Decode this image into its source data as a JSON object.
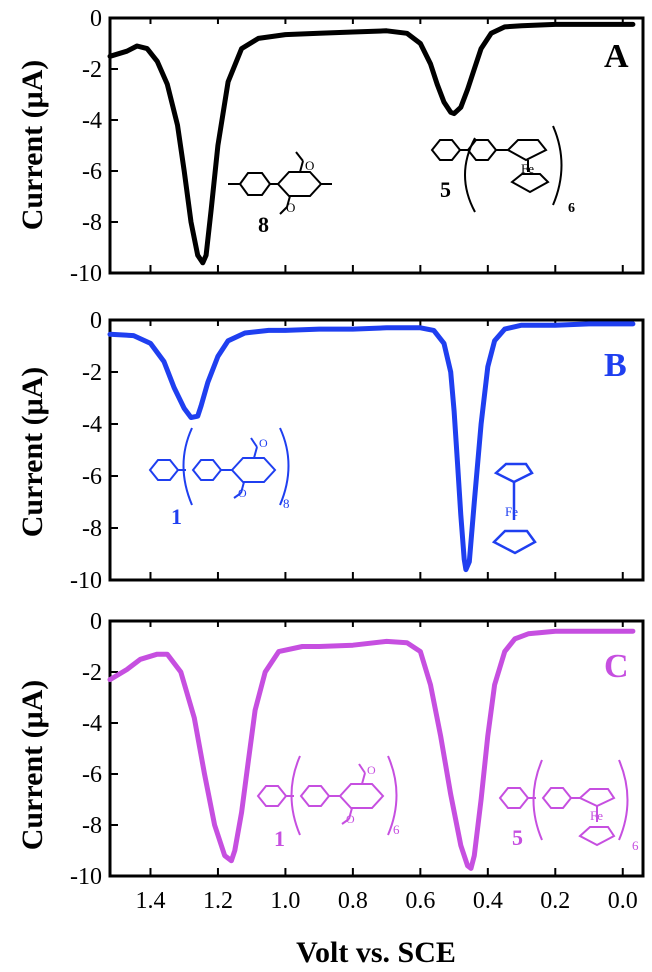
{
  "figure": {
    "xlabel": "Volt vs. SCE",
    "ylabel": "Current (μA)"
  },
  "chart_data": [
    {
      "type": "line",
      "panel_label": "A",
      "color": "#000000",
      "xlabel": "",
      "ylabel": "Current (μA)",
      "xlim": [
        1.52,
        -0.06
      ],
      "ylim": [
        -10,
        0
      ],
      "yticks": [
        0,
        -2,
        -4,
        -6,
        -8,
        -10
      ],
      "yticklabels": [
        "0",
        "-2",
        "-4",
        "-6",
        "-8",
        "-10"
      ],
      "grid": false,
      "series": [
        {
          "x": [
            1.52,
            1.47,
            1.44,
            1.41,
            1.38,
            1.35,
            1.32,
            1.3,
            1.28,
            1.26,
            1.245,
            1.235,
            1.22,
            1.2,
            1.17,
            1.13,
            1.08,
            1.0,
            0.9,
            0.8,
            0.7,
            0.64,
            0.6,
            0.57,
            0.55,
            0.53,
            0.51,
            0.5,
            0.48,
            0.46,
            0.44,
            0.42,
            0.39,
            0.35,
            0.3,
            0.2,
            0.1,
            0.0,
            -0.03
          ],
          "y": [
            -1.5,
            -1.3,
            -1.1,
            -1.2,
            -1.7,
            -2.6,
            -4.2,
            -6.0,
            -8.0,
            -9.3,
            -9.6,
            -9.3,
            -7.5,
            -5.0,
            -2.5,
            -1.2,
            -0.8,
            -0.65,
            -0.6,
            -0.55,
            -0.5,
            -0.6,
            -1.0,
            -1.8,
            -2.6,
            -3.3,
            -3.7,
            -3.75,
            -3.5,
            -2.8,
            -2.0,
            -1.2,
            -0.6,
            -0.35,
            -0.3,
            -0.25,
            -0.25,
            -0.25,
            -0.25
          ]
        }
      ],
      "annotations": [
        {
          "text": "8",
          "x": 1.2,
          "y": -8.3
        },
        {
          "text": "5",
          "x": 0.5,
          "y": -6.6
        },
        {
          "text": "Fe",
          "x": 0.23,
          "y": -5.8
        },
        {
          "text": "6",
          "x": 0.07,
          "y": -7.2
        }
      ],
      "structures": [
        "molecule 8",
        "ferrocene"
      ]
    },
    {
      "type": "line",
      "panel_label": "B",
      "color": "#1f3ff0",
      "xlabel": "",
      "ylabel": "Current (μA)",
      "xlim": [
        1.52,
        -0.06
      ],
      "ylim": [
        -10,
        0
      ],
      "yticks": [
        0,
        -2,
        -4,
        -6,
        -8,
        -10
      ],
      "yticklabels": [
        "0",
        "-2",
        "-4",
        "-6",
        "-8",
        "-10"
      ],
      "grid": false,
      "series": [
        {
          "x": [
            1.52,
            1.45,
            1.4,
            1.36,
            1.33,
            1.3,
            1.28,
            1.26,
            1.25,
            1.23,
            1.2,
            1.17,
            1.12,
            1.05,
            1.0,
            0.9,
            0.8,
            0.7,
            0.6,
            0.56,
            0.53,
            0.51,
            0.5,
            0.49,
            0.48,
            0.47,
            0.465,
            0.455,
            0.44,
            0.42,
            0.4,
            0.38,
            0.35,
            0.3,
            0.2,
            0.1,
            0.0,
            -0.03
          ],
          "y": [
            -0.55,
            -0.6,
            -0.9,
            -1.6,
            -2.6,
            -3.4,
            -3.75,
            -3.7,
            -3.3,
            -2.4,
            -1.4,
            -0.8,
            -0.5,
            -0.4,
            -0.4,
            -0.35,
            -0.35,
            -0.3,
            -0.3,
            -0.4,
            -0.9,
            -2.0,
            -3.5,
            -5.5,
            -7.5,
            -9.2,
            -9.6,
            -9.3,
            -7.0,
            -4.0,
            -1.8,
            -0.8,
            -0.35,
            -0.2,
            -0.2,
            -0.15,
            -0.15,
            -0.15
          ]
        }
      ],
      "annotations": [
        {
          "text": "1",
          "x": 1.47,
          "y": -6.5
        },
        {
          "text": "8",
          "x": 1.08,
          "y": -5.8
        },
        {
          "text": "Fe",
          "x": 0.31,
          "y": -7.2
        }
      ],
      "structures": [
        "molecule 1",
        "ferrocene"
      ]
    },
    {
      "type": "line",
      "panel_label": "C",
      "color": "#c64fe0",
      "xlabel": "Volt vs. SCE",
      "ylabel": "Current (μA)",
      "xlim": [
        1.52,
        -0.06
      ],
      "xticks": [
        1.4,
        1.2,
        1.0,
        0.8,
        0.6,
        0.4,
        0.2,
        0.0
      ],
      "xticklabels": [
        "1.4",
        "1.2",
        "1.0",
        "0.8",
        "0.6",
        "0.4",
        "0.2",
        "0.0"
      ],
      "ylim": [
        -10,
        0
      ],
      "yticks": [
        0,
        -2,
        -4,
        -6,
        -8,
        -10
      ],
      "yticklabels": [
        "0",
        "-2",
        "-4",
        "-6",
        "-8",
        "-10"
      ],
      "grid": false,
      "series": [
        {
          "x": [
            1.52,
            1.47,
            1.43,
            1.38,
            1.35,
            1.31,
            1.27,
            1.24,
            1.21,
            1.18,
            1.16,
            1.15,
            1.13,
            1.11,
            1.09,
            1.06,
            1.02,
            0.95,
            0.9,
            0.8,
            0.7,
            0.64,
            0.6,
            0.57,
            0.54,
            0.51,
            0.48,
            0.46,
            0.45,
            0.44,
            0.42,
            0.4,
            0.38,
            0.35,
            0.32,
            0.28,
            0.2,
            0.1,
            0.0,
            -0.03
          ],
          "y": [
            -2.3,
            -1.9,
            -1.5,
            -1.3,
            -1.3,
            -2.0,
            -3.8,
            -6.0,
            -8.0,
            -9.2,
            -9.4,
            -9.0,
            -7.5,
            -5.5,
            -3.5,
            -2.0,
            -1.2,
            -1.0,
            -1.0,
            -0.95,
            -0.8,
            -0.85,
            -1.2,
            -2.5,
            -4.5,
            -6.8,
            -8.8,
            -9.6,
            -9.7,
            -9.2,
            -7.0,
            -4.5,
            -2.5,
            -1.2,
            -0.7,
            -0.5,
            -0.4,
            -0.4,
            -0.4,
            -0.4
          ]
        }
      ],
      "annotations": [
        {
          "text": "1",
          "x": 1.06,
          "y": -8.9
        },
        {
          "text": "6",
          "x": 0.6,
          "y": -8.7
        },
        {
          "text": "5",
          "x": 0.3,
          "y": -8.9
        },
        {
          "text": "Fe",
          "x": 0.19,
          "y": -8.8
        },
        {
          "text": "6",
          "x": 0.03,
          "y": -9.6
        }
      ],
      "structures": [
        "molecule 1",
        "molecule 5"
      ]
    }
  ]
}
